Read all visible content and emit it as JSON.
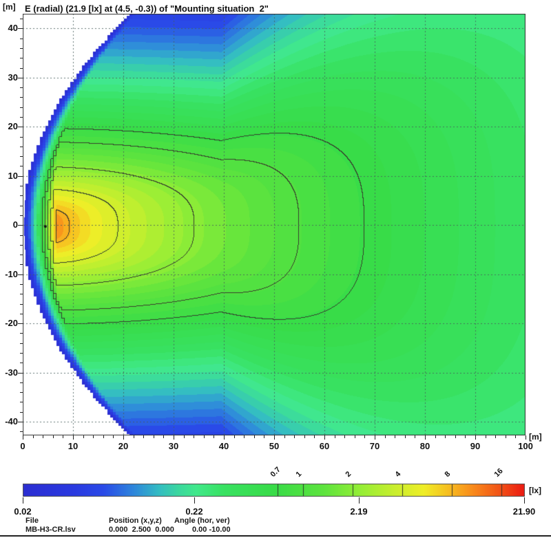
{
  "header": {
    "left_axis_unit": "[m]",
    "title": "E (radial) (21.9 [lx] at (4.5, -0.3)) of \"Mounting situation  2\""
  },
  "plot": {
    "x_axis_unit": "[m]"
  },
  "colorbar": {
    "unit": "[lx]"
  },
  "footer": {
    "columns": [
      {
        "label": "File",
        "value": "MB-H3-CR.lsv"
      },
      {
        "label": "Position (x,y,z)",
        "value": "0.000  2.500  0.000"
      },
      {
        "label": "Angle (hor, ver)",
        "value": "0.00 -10.00"
      }
    ]
  },
  "chart_data": {
    "type": "heatmap",
    "quantity": "Illuminance E (radial) ground plot with isolux contours",
    "title": "E (radial) (21.9 [lx] at (4.5, -0.3)) of \"Mounting situation 2\"",
    "unit": "lx",
    "x_axis": {
      "label": "[m]",
      "min": 0,
      "max": 100,
      "major_tick": 10,
      "minor_tick": 2,
      "tick_labels": [
        0,
        10,
        20,
        30,
        40,
        50,
        60,
        70,
        80,
        90,
        100
      ]
    },
    "y_axis": {
      "label": "[m]",
      "min": -42.8,
      "max": 43.0,
      "major_tick": 10,
      "minor_tick": 2,
      "tick_labels": [
        40,
        30,
        20,
        10,
        0,
        -10,
        -20,
        -30,
        -40
      ]
    },
    "grid": {
      "step": 10,
      "style": "dashed",
      "color": "rgba(72,94,90,0.85)"
    },
    "scale": {
      "type": "log",
      "min": 0.02,
      "max": 21.9,
      "unit": "[lx]",
      "labels": [
        {
          "value": 0.02,
          "text": "0.02"
        },
        {
          "value": 0.22,
          "text": "0.22"
        },
        {
          "value": 2.19,
          "text": "2.19"
        },
        {
          "value": 21.9,
          "text": "21.90"
        }
      ]
    },
    "peak": {
      "value": 21.9,
      "x": 4.5,
      "y": -0.3,
      "marker": "dot"
    },
    "contour_levels": [
      0.7,
      1,
      2,
      4,
      8,
      16
    ],
    "contour_labels": [
      "0.7",
      "1",
      "2",
      "4",
      "8",
      "16"
    ],
    "contour_color": "rgba(55,62,45,0.9)",
    "no_data_color": "#ffffff",
    "colormap": [
      [
        0.0,
        "#2c2ed2"
      ],
      [
        0.1,
        "#2a3ae0"
      ],
      [
        0.16,
        "#2a4ae8"
      ],
      [
        0.22,
        "#2e86dc"
      ],
      [
        0.27,
        "#33bcc4"
      ],
      [
        0.31,
        "#3bd89f"
      ],
      [
        0.345,
        "#41e98c"
      ],
      [
        0.4,
        "#38e262"
      ],
      [
        0.5,
        "#38dc48"
      ],
      [
        0.6,
        "#5ee43e"
      ],
      [
        0.67,
        "#93ee36"
      ],
      [
        0.74,
        "#c9ef2e"
      ],
      [
        0.8,
        "#f0ee27"
      ],
      [
        0.85,
        "#f7bd20"
      ],
      [
        0.9,
        "#f9881b"
      ],
      [
        0.95,
        "#f25417"
      ],
      [
        1.0,
        "#ec1a12"
      ]
    ],
    "field_model": {
      "peak": 21.9,
      "cx": 4.5,
      "cy": -0.3,
      "kh": 0.647,
      "ph": 0.478,
      "ah": 11,
      "kv": 0.169,
      "pv": 0.729,
      "kb": 0.396,
      "pb": 0.711,
      "back_reach": 4.4,
      "blend_r_right": 4,
      "blend_r_left": 1.5,
      "far_start": 35,
      "far_spread": 0.022,
      "edge_a": 0.0116,
      "edge_tau": 2.5,
      "scale_min": 0.02
    }
  }
}
